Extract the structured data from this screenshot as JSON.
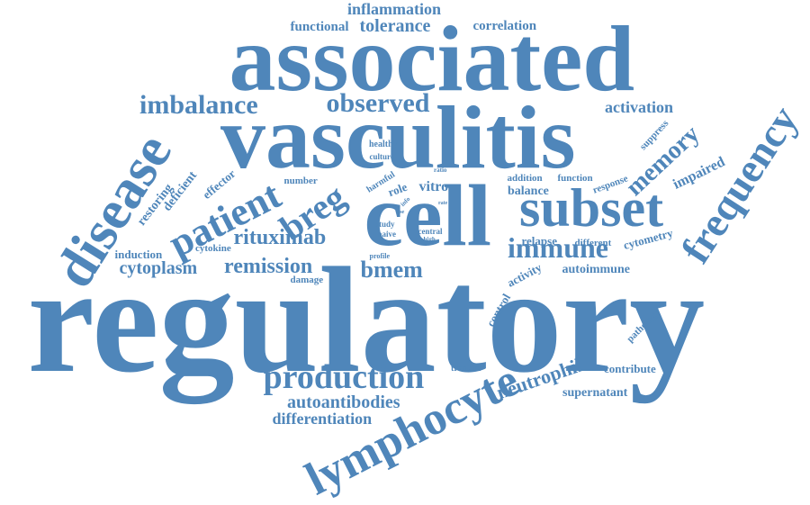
{
  "word_color": "#4f86ba",
  "background": "#ffffff",
  "words": [
    "regulatory",
    "associated",
    "vasculitis",
    "cell",
    "subset",
    "disease",
    "lymphocyte",
    "frequency",
    "patient",
    "production",
    "breg",
    "immune",
    "memory",
    "imbalance",
    "observed",
    "remission",
    "rituximab",
    "bmem",
    "cytoplasm",
    "neutrophil",
    "autoantibodies",
    "differentiation",
    "inflammation",
    "tolerance",
    "functional",
    "correlation",
    "activation",
    "impaired",
    "restoring",
    "deficient",
    "effector",
    "induction",
    "cytokine",
    "damage",
    "autoimmune",
    "activity",
    "control",
    "relapse",
    "different",
    "cytometry",
    "balance",
    "addition",
    "function",
    "response",
    "suppress",
    "pathology",
    "contribute",
    "supernatant",
    "transfer",
    "vitro",
    "role",
    "harmful",
    "healthy",
    "culture",
    "number",
    "study",
    "naive",
    "central",
    "high",
    "profile",
    "effect",
    "info",
    "ratio",
    "rate",
    "use"
  ]
}
